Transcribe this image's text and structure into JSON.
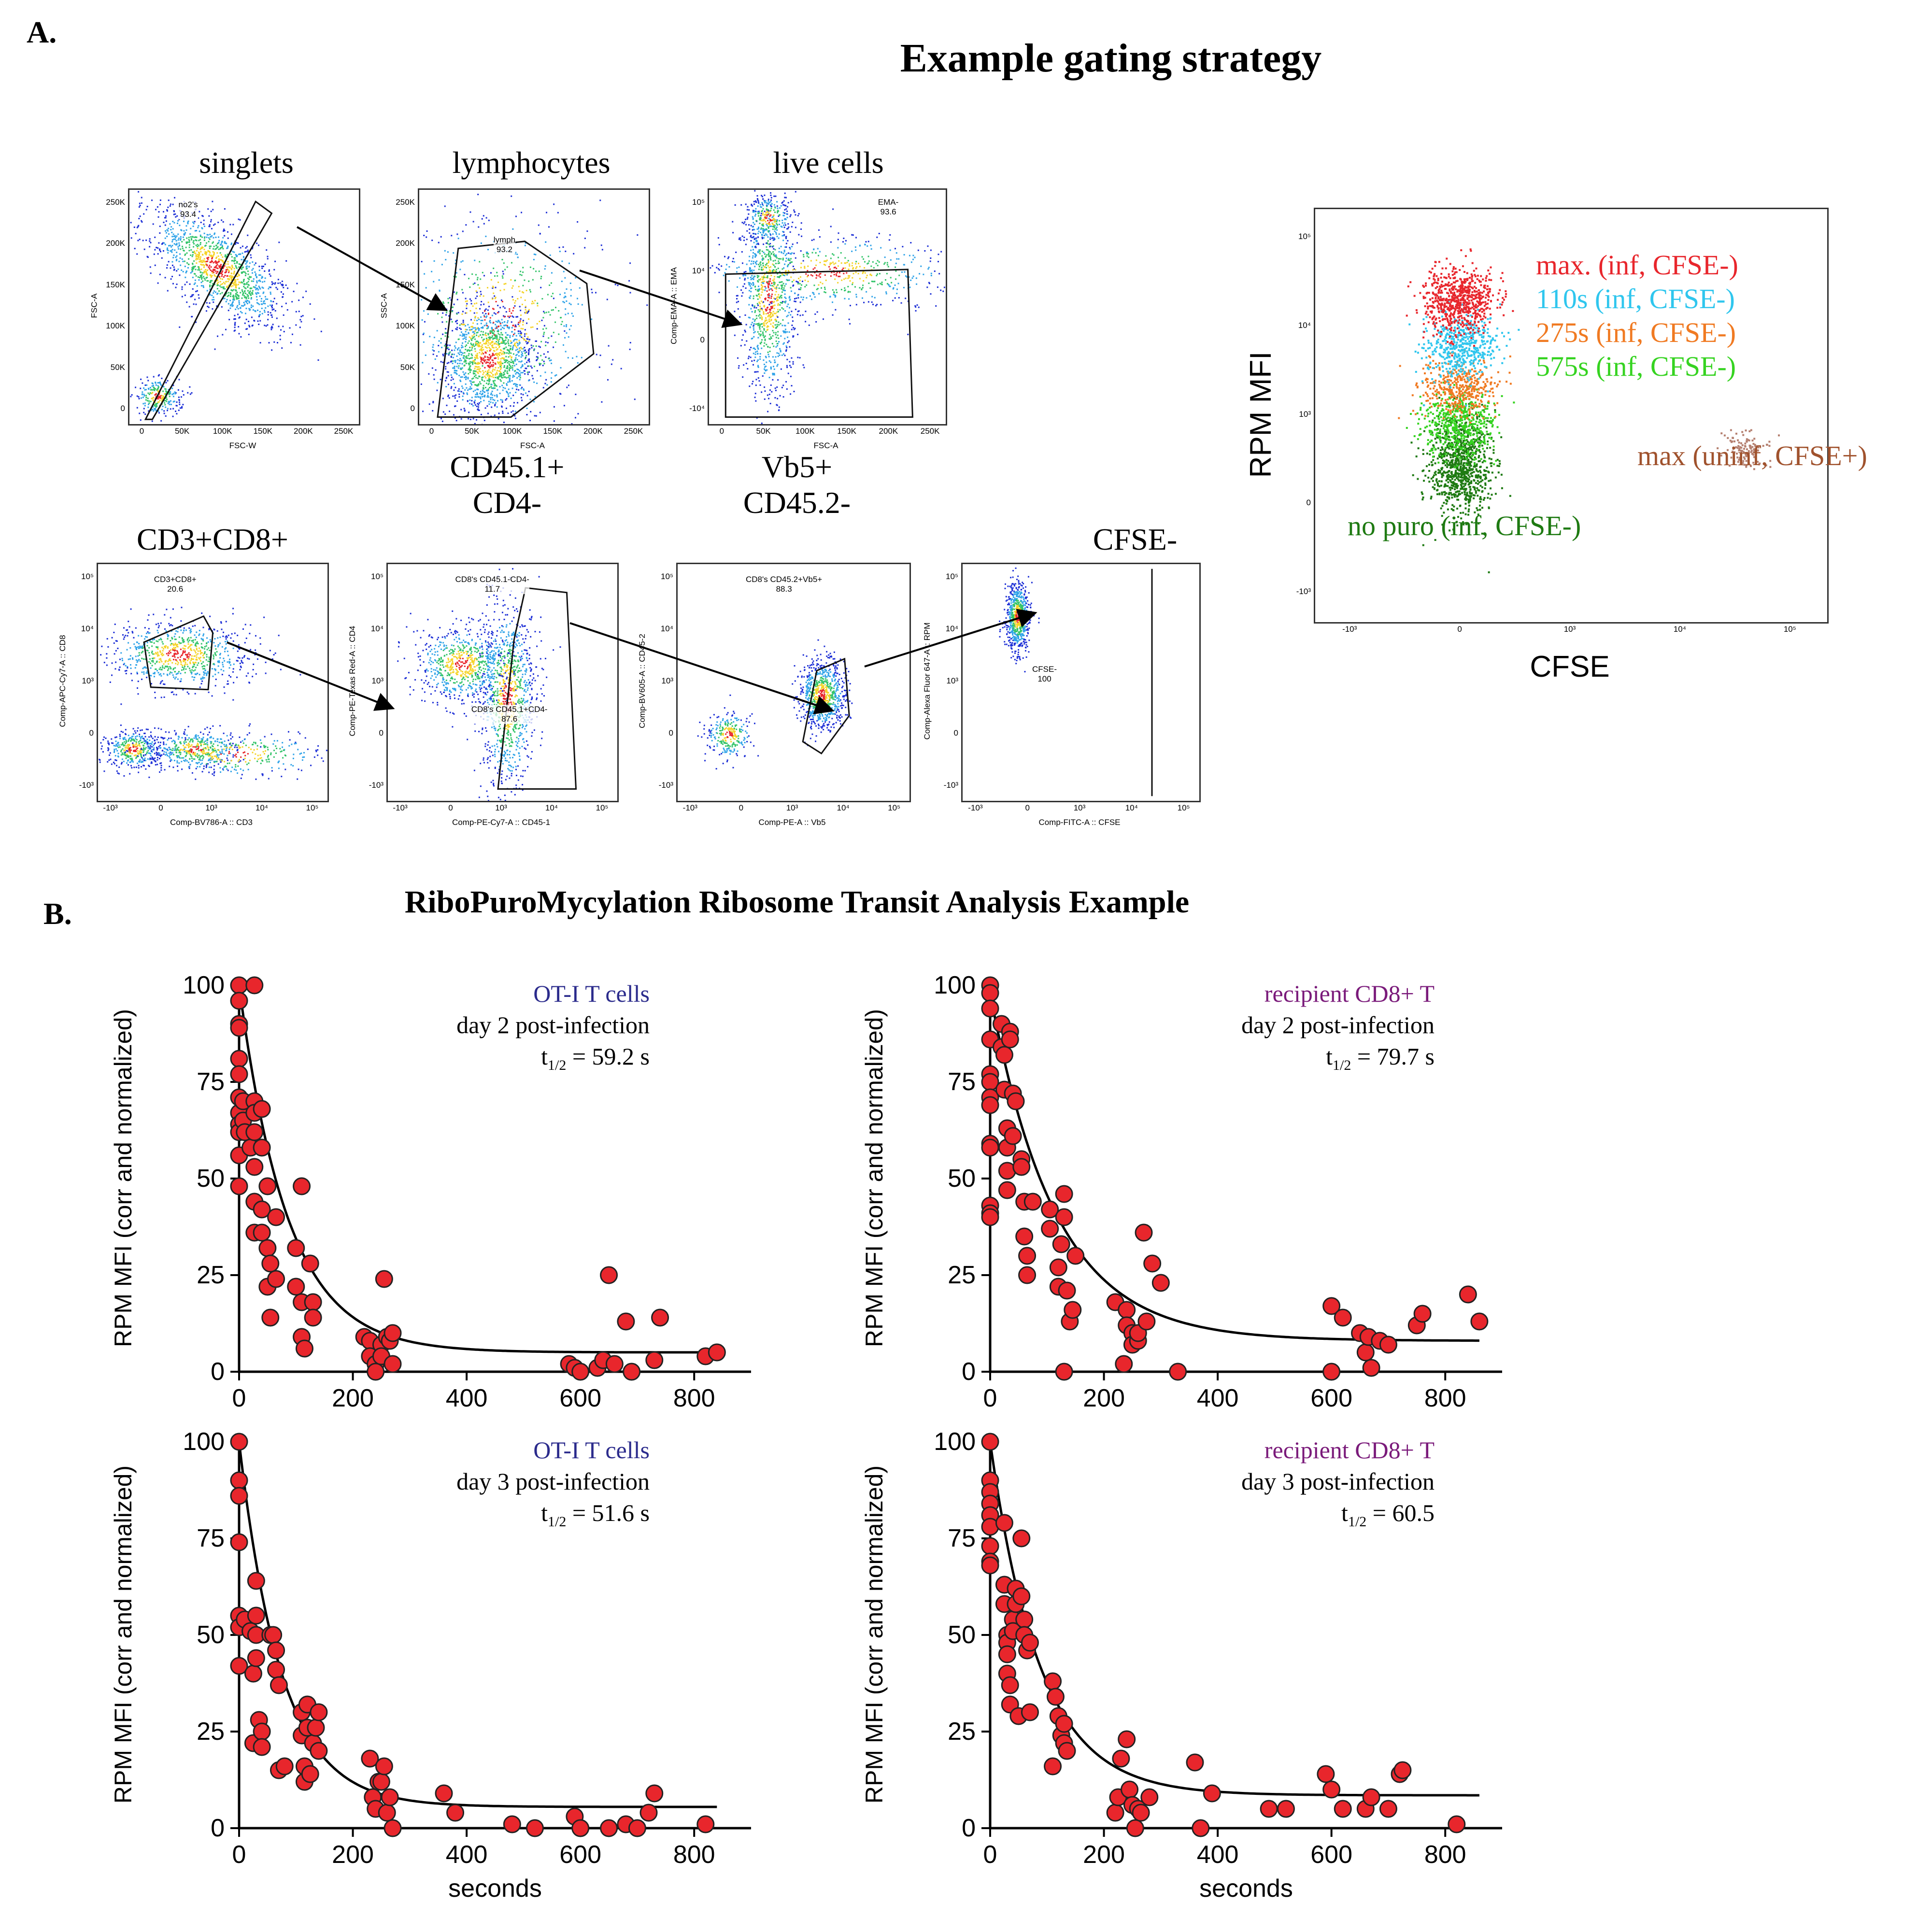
{
  "labels": {
    "panel_a": "A.",
    "panel_b": "B."
  },
  "section_a_title": "Example gating strategy",
  "section_b_title": "RiboPuroMycylation Ribosome Transit Analysis Example",
  "gating": [
    {
      "title": "singlets",
      "gate_label": "no2's",
      "gate_value": "93.4",
      "xlabel": "FSC-W",
      "ylabel": "FSC-A",
      "xticks": [
        "0",
        "50K",
        "100K",
        "150K",
        "200K",
        "250K"
      ],
      "yticks": [
        "0",
        "50K",
        "100K",
        "150K",
        "200K",
        "250K"
      ]
    },
    {
      "title": "lymphocytes",
      "gate_label": "lymph",
      "gate_value": "93.2",
      "xlabel": "FSC-A",
      "ylabel": "SSC-A",
      "xticks": [
        "0",
        "50K",
        "100K",
        "150K",
        "200K",
        "250K"
      ],
      "yticks": [
        "0",
        "50K",
        "100K",
        "150K",
        "200K",
        "250K"
      ]
    },
    {
      "title": "live cells",
      "gate_label": "EMA-",
      "gate_value": "93.6",
      "xlabel": "FSC-A",
      "ylabel": "Comp-EMA-A :: EMA",
      "xticks": [
        "0",
        "50K",
        "100K",
        "150K",
        "200K",
        "250K"
      ],
      "yticks": [
        "-10^4",
        "0",
        "10^4",
        "10^5"
      ]
    },
    {
      "title": "CD3+CD8+",
      "gate_label": "CD3+CD8+",
      "gate_value": "20.6",
      "xlabel": "Comp-BV786-A :: CD3",
      "ylabel": "Comp-APC-Cy7-A :: CD8",
      "xticks": [
        "-10^3",
        "0",
        "10^3",
        "10^4",
        "10^5"
      ],
      "yticks": [
        "-10^3",
        "0",
        "10^3",
        "10^4",
        "10^5"
      ]
    },
    {
      "title": "CD45.1+\nCD4-",
      "gate_label": "CD8's CD45.1-CD4-",
      "gate_value": "11.7",
      "gate2_label": "CD8's CD45.1+CD4-",
      "gate2_value": "87.6",
      "xlabel": "Comp-PE-Cy7-A :: CD45-1",
      "ylabel": "Comp-PE-Texas Red-A :: CD4",
      "xticks": [
        "-10^3",
        "0",
        "10^3",
        "10^4",
        "10^5"
      ],
      "yticks": [
        "-10^3",
        "0",
        "10^3",
        "10^4",
        "10^5"
      ]
    },
    {
      "title": "Vb5+\nCD45.2-",
      "gate_label": "CD8's CD45.2+Vb5+",
      "gate_value": "88.3",
      "xlabel": "Comp-PE-A :: Vb5",
      "ylabel": "Comp-BV605-A :: CD45-2",
      "xticks": [
        "-10^3",
        "0",
        "10^3",
        "10^4",
        "10^5"
      ],
      "yticks": [
        "-10^3",
        "0",
        "10^3",
        "10^4",
        "10^5"
      ]
    },
    {
      "title": "CFSE-",
      "gate_label": "CFSE-",
      "gate_value": "100",
      "xlabel": "Comp-FITC-A :: CFSE",
      "ylabel": "Comp-Alexa Fluor 647-A :: RPM",
      "xticks": [
        "-10^3",
        "0",
        "10^3",
        "10^4",
        "10^5"
      ],
      "yticks": [
        "-10^3",
        "0",
        "10^3",
        "10^4",
        "10^5"
      ]
    }
  ],
  "overlay": {
    "xlabel": "CFSE",
    "ylabel": "RPM MFI",
    "xticks": [
      "-10^3",
      "0",
      "10^3",
      "10^4",
      "10^5"
    ],
    "yticks": [
      "-10^3",
      "0",
      "10^3",
      "10^4",
      "10^5"
    ],
    "legend": [
      {
        "label": "max. (inf, CFSE-)",
        "color": "#e8262c"
      },
      {
        "label": "110s (inf, CFSE-)",
        "color": "#2fc6ee"
      },
      {
        "label": "275s (inf, CFSE-)",
        "color": "#f07a22"
      },
      {
        "label": "575s (inf, CFSE-)",
        "color": "#36d321"
      },
      {
        "label": "max (uninf, CFSE+)",
        "color": "#a0522d"
      },
      {
        "label": "no puro (inf, CFSE-)",
        "color": "#1e7a12"
      }
    ]
  },
  "chart_data": [
    {
      "type": "scatter",
      "title": "",
      "xlabel": "",
      "ylabel": "RPM MFI (corr and normalized)",
      "group": "OT-I T cells",
      "group_color": "#2b2b8c",
      "timepoint": "day 2 post-infection",
      "half_life_label": "t",
      "half_life_sub": "1/2",
      "half_life_value": "= 59.2 s",
      "xlim": [
        0,
        900
      ],
      "ylim": [
        0,
        100
      ],
      "xticks": [
        "0",
        "200",
        "400",
        "600",
        "800"
      ],
      "yticks": [
        "0",
        "25",
        "50",
        "75",
        "100"
      ],
      "fit": {
        "plateau": 5,
        "span": 95,
        "half_life": 59.2
      },
      "points": [
        [
          0,
          100
        ],
        [
          0,
          96
        ],
        [
          0,
          90
        ],
        [
          0,
          89
        ],
        [
          0,
          81
        ],
        [
          0,
          77
        ],
        [
          0,
          71
        ],
        [
          0,
          67
        ],
        [
          0,
          64
        ],
        [
          0,
          62
        ],
        [
          0,
          56
        ],
        [
          0,
          48
        ],
        [
          7,
          70
        ],
        [
          7,
          65
        ],
        [
          10,
          62
        ],
        [
          20,
          58
        ],
        [
          27,
          100
        ],
        [
          27,
          70
        ],
        [
          27,
          67
        ],
        [
          27,
          62
        ],
        [
          27,
          53
        ],
        [
          27,
          44
        ],
        [
          27,
          36
        ],
        [
          40,
          68
        ],
        [
          40,
          58
        ],
        [
          40,
          42
        ],
        [
          40,
          36
        ],
        [
          50,
          48
        ],
        [
          50,
          32
        ],
        [
          50,
          22
        ],
        [
          55,
          28
        ],
        [
          55,
          14
        ],
        [
          65,
          40
        ],
        [
          65,
          24
        ],
        [
          100,
          32
        ],
        [
          100,
          22
        ],
        [
          110,
          48
        ],
        [
          110,
          18
        ],
        [
          110,
          9
        ],
        [
          115,
          6
        ],
        [
          125,
          28
        ],
        [
          130,
          18
        ],
        [
          130,
          14
        ],
        [
          220,
          9
        ],
        [
          230,
          8
        ],
        [
          230,
          4
        ],
        [
          240,
          2
        ],
        [
          240,
          0
        ],
        [
          250,
          7
        ],
        [
          250,
          4
        ],
        [
          255,
          24
        ],
        [
          260,
          9
        ],
        [
          265,
          8
        ],
        [
          270,
          10
        ],
        [
          270,
          2
        ],
        [
          580,
          2
        ],
        [
          590,
          1
        ],
        [
          600,
          0
        ],
        [
          630,
          1
        ],
        [
          640,
          3
        ],
        [
          650,
          25
        ],
        [
          660,
          2
        ],
        [
          680,
          13
        ],
        [
          690,
          0
        ],
        [
          730,
          3
        ],
        [
          740,
          14
        ],
        [
          820,
          4
        ],
        [
          840,
          5
        ]
      ]
    },
    {
      "type": "scatter",
      "title": "",
      "xlabel": "",
      "ylabel": "RPM MFI (corr and normalized)",
      "group": "recipient CD8+ T",
      "group_color": "#7a1a7a",
      "timepoint": "day 2 post-infection",
      "half_life_label": "t",
      "half_life_sub": "1/2",
      "half_life_value": "= 79.7 s",
      "xlim": [
        0,
        900
      ],
      "ylim": [
        0,
        100
      ],
      "xticks": [
        "0",
        "200",
        "400",
        "600",
        "800"
      ],
      "yticks": [
        "0",
        "25",
        "50",
        "75",
        "100"
      ],
      "fit": {
        "plateau": 8,
        "span": 90,
        "half_life": 79.7
      },
      "points": [
        [
          0,
          100
        ],
        [
          0,
          98
        ],
        [
          0,
          94
        ],
        [
          0,
          86
        ],
        [
          0,
          77
        ],
        [
          0,
          75
        ],
        [
          0,
          71
        ],
        [
          0,
          69
        ],
        [
          0,
          59
        ],
        [
          0,
          58
        ],
        [
          0,
          43
        ],
        [
          0,
          41
        ],
        [
          0,
          40
        ],
        [
          20,
          90
        ],
        [
          20,
          84
        ],
        [
          25,
          82
        ],
        [
          25,
          73
        ],
        [
          30,
          63
        ],
        [
          30,
          58
        ],
        [
          30,
          52
        ],
        [
          30,
          47
        ],
        [
          35,
          88
        ],
        [
          35,
          86
        ],
        [
          40,
          72
        ],
        [
          40,
          61
        ],
        [
          45,
          70
        ],
        [
          55,
          55
        ],
        [
          55,
          53
        ],
        [
          60,
          44
        ],
        [
          60,
          35
        ],
        [
          65,
          30
        ],
        [
          65,
          25
        ],
        [
          75,
          44
        ],
        [
          105,
          42
        ],
        [
          105,
          37
        ],
        [
          120,
          27
        ],
        [
          120,
          22
        ],
        [
          125,
          33
        ],
        [
          130,
          46
        ],
        [
          130,
          40
        ],
        [
          135,
          21
        ],
        [
          140,
          13
        ],
        [
          145,
          16
        ],
        [
          150,
          30
        ],
        [
          130,
          0
        ],
        [
          220,
          18
        ],
        [
          235,
          2
        ],
        [
          240,
          16
        ],
        [
          240,
          12
        ],
        [
          250,
          10
        ],
        [
          250,
          7
        ],
        [
          260,
          8
        ],
        [
          260,
          10
        ],
        [
          270,
          36
        ],
        [
          275,
          13
        ],
        [
          285,
          28
        ],
        [
          300,
          23
        ],
        [
          330,
          0
        ],
        [
          600,
          0
        ],
        [
          600,
          17
        ],
        [
          620,
          14
        ],
        [
          650,
          10
        ],
        [
          660,
          5
        ],
        [
          665,
          9
        ],
        [
          670,
          1
        ],
        [
          685,
          8
        ],
        [
          700,
          7
        ],
        [
          750,
          12
        ],
        [
          760,
          15
        ],
        [
          840,
          20
        ],
        [
          860,
          13
        ]
      ]
    },
    {
      "type": "scatter",
      "title": "",
      "xlabel": "seconds",
      "ylabel": "RPM MFI (corr and normalized)",
      "group": "OT-I T cells",
      "group_color": "#2b2b8c",
      "timepoint": "day 3 post-infection",
      "half_life_label": "t",
      "half_life_sub": "1/2",
      "half_life_value": "= 51.6 s",
      "xlim": [
        0,
        900
      ],
      "ylim": [
        0,
        100
      ],
      "xticks": [
        "0",
        "200",
        "400",
        "600",
        "800"
      ],
      "yticks": [
        "0",
        "25",
        "50",
        "75",
        "100"
      ],
      "fit": {
        "plateau": 5.5,
        "span": 94.5,
        "half_life": 51.6
      },
      "points": [
        [
          0,
          100
        ],
        [
          0,
          90
        ],
        [
          0,
          86
        ],
        [
          0,
          74
        ],
        [
          0,
          55
        ],
        [
          0,
          52
        ],
        [
          0,
          42
        ],
        [
          10,
          54
        ],
        [
          20,
          51
        ],
        [
          25,
          40
        ],
        [
          25,
          22
        ],
        [
          30,
          64
        ],
        [
          30,
          55
        ],
        [
          30,
          50
        ],
        [
          30,
          44
        ],
        [
          35,
          28
        ],
        [
          40,
          25
        ],
        [
          40,
          21
        ],
        [
          55,
          50
        ],
        [
          60,
          50
        ],
        [
          65,
          46
        ],
        [
          65,
          41
        ],
        [
          70,
          37
        ],
        [
          70,
          15
        ],
        [
          80,
          16
        ],
        [
          110,
          30
        ],
        [
          110,
          24
        ],
        [
          115,
          16
        ],
        [
          115,
          12
        ],
        [
          120,
          26
        ],
        [
          120,
          32
        ],
        [
          125,
          14
        ],
        [
          130,
          22
        ],
        [
          135,
          26
        ],
        [
          140,
          20
        ],
        [
          140,
          30
        ],
        [
          230,
          18
        ],
        [
          235,
          8
        ],
        [
          240,
          5
        ],
        [
          245,
          12
        ],
        [
          250,
          12
        ],
        [
          255,
          16
        ],
        [
          260,
          4
        ],
        [
          265,
          8
        ],
        [
          270,
          0
        ],
        [
          360,
          9
        ],
        [
          380,
          4
        ],
        [
          480,
          1
        ],
        [
          520,
          0
        ],
        [
          590,
          3
        ],
        [
          600,
          0
        ],
        [
          650,
          0
        ],
        [
          680,
          1
        ],
        [
          700,
          0
        ],
        [
          720,
          4
        ],
        [
          730,
          9
        ],
        [
          820,
          1
        ]
      ]
    },
    {
      "type": "scatter",
      "title": "",
      "xlabel": "seconds",
      "ylabel": "RPM MFI (corr and normalized)",
      "group": "recipient CD8+ T",
      "group_color": "#7a1a7a",
      "timepoint": "day 3 post-infection",
      "half_life_label": "t",
      "half_life_sub": "1/2",
      "half_life_value": "= 60.5",
      "xlim": [
        0,
        900
      ],
      "ylim": [
        0,
        100
      ],
      "xticks": [
        "0",
        "200",
        "400",
        "600",
        "800"
      ],
      "yticks": [
        "0",
        "25",
        "50",
        "75",
        "100"
      ],
      "fit": {
        "plateau": 8.5,
        "span": 91.5,
        "half_life": 60.5
      },
      "points": [
        [
          0,
          100
        ],
        [
          0,
          90
        ],
        [
          0,
          87
        ],
        [
          0,
          84
        ],
        [
          0,
          81
        ],
        [
          0,
          78
        ],
        [
          0,
          73
        ],
        [
          0,
          69
        ],
        [
          0,
          68
        ],
        [
          25,
          79
        ],
        [
          25,
          63
        ],
        [
          25,
          58
        ],
        [
          30,
          50
        ],
        [
          30,
          48
        ],
        [
          30,
          45
        ],
        [
          30,
          40
        ],
        [
          35,
          37
        ],
        [
          35,
          32
        ],
        [
          40,
          54
        ],
        [
          40,
          51
        ],
        [
          45,
          62
        ],
        [
          45,
          58
        ],
        [
          50,
          29
        ],
        [
          55,
          75
        ],
        [
          55,
          60
        ],
        [
          60,
          54
        ],
        [
          60,
          50
        ],
        [
          65,
          46
        ],
        [
          70,
          48
        ],
        [
          70,
          30
        ],
        [
          110,
          38
        ],
        [
          110,
          16
        ],
        [
          115,
          34
        ],
        [
          120,
          29
        ],
        [
          125,
          24
        ],
        [
          130,
          27
        ],
        [
          130,
          22
        ],
        [
          135,
          20
        ],
        [
          220,
          4
        ],
        [
          225,
          8
        ],
        [
          230,
          18
        ],
        [
          240,
          23
        ],
        [
          245,
          10
        ],
        [
          250,
          6
        ],
        [
          255,
          0
        ],
        [
          260,
          5
        ],
        [
          265,
          4
        ],
        [
          280,
          8
        ],
        [
          360,
          17
        ],
        [
          370,
          0
        ],
        [
          390,
          9
        ],
        [
          490,
          5
        ],
        [
          520,
          5
        ],
        [
          590,
          14
        ],
        [
          600,
          10
        ],
        [
          620,
          5
        ],
        [
          660,
          5
        ],
        [
          670,
          8
        ],
        [
          700,
          5
        ],
        [
          720,
          14
        ],
        [
          725,
          15
        ],
        [
          820,
          1
        ]
      ]
    }
  ]
}
